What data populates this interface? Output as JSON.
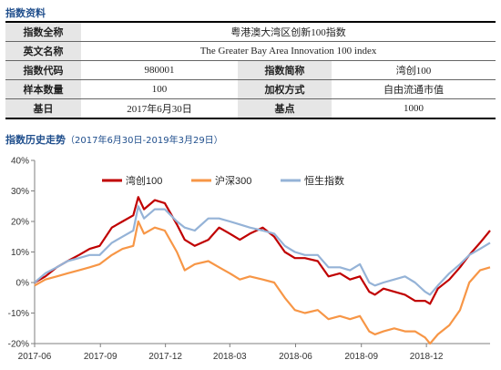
{
  "info_section": {
    "title": "指数资料"
  },
  "info_table": {
    "row1": {
      "label": "指数全称",
      "value": "粤港澳大湾区创新100指数"
    },
    "row2": {
      "label": "英文名称",
      "value": "The Greater Bay Area Innovation 100 index"
    },
    "row3": {
      "label_a": "指数代码",
      "value_a": "980001",
      "label_b": "指数简称",
      "value_b": "湾创100"
    },
    "row4": {
      "label_a": "样本数量",
      "value_a": "100",
      "label_b": "加权方式",
      "value_b": "自由流通市值"
    },
    "row5": {
      "label_a": "基日",
      "value_a": "2017年6月30日",
      "label_b": "基点",
      "value_b": "1000"
    }
  },
  "chart_section": {
    "title": "指数历史走势",
    "subtitle": "（2017年6月30日-2019年3月29日）"
  },
  "chart_data": {
    "type": "line",
    "x": [
      "2017-06-30",
      "2017-07-15",
      "2017-07-31",
      "2017-08-15",
      "2017-08-31",
      "2017-09-15",
      "2017-09-29",
      "2017-10-16",
      "2017-10-31",
      "2017-11-15",
      "2017-11-22",
      "2017-11-30",
      "2017-12-15",
      "2017-12-29",
      "2018-01-15",
      "2018-01-26",
      "2018-02-09",
      "2018-02-28",
      "2018-03-15",
      "2018-03-30",
      "2018-04-13",
      "2018-04-27",
      "2018-05-15",
      "2018-05-31",
      "2018-06-15",
      "2018-06-29",
      "2018-07-13",
      "2018-07-31",
      "2018-08-15",
      "2018-08-31",
      "2018-09-14",
      "2018-09-28",
      "2018-10-11",
      "2018-10-19",
      "2018-10-31",
      "2018-11-15",
      "2018-11-30",
      "2018-12-14",
      "2018-12-28",
      "2019-01-04",
      "2019-01-15",
      "2019-01-31",
      "2019-02-15",
      "2019-02-28",
      "2019-03-15",
      "2019-03-29"
    ],
    "series": [
      {
        "name": "湾创100",
        "color": "#c00000",
        "values": [
          0,
          2,
          5,
          7,
          9,
          11,
          12,
          18,
          20,
          22,
          28,
          24,
          27,
          26,
          19,
          14,
          12,
          14,
          18,
          16,
          14,
          16,
          18,
          15,
          10,
          8,
          8,
          7,
          2,
          3,
          1,
          2,
          -3,
          -4,
          -2,
          -3,
          -4,
          -6,
          -6,
          -7,
          -2,
          1,
          5,
          9,
          13,
          17
        ]
      },
      {
        "name": "沪深300",
        "color": "#f79646",
        "values": [
          -1,
          1,
          2,
          3,
          4,
          5,
          6,
          9,
          11,
          12,
          20,
          16,
          18,
          17,
          10,
          4,
          6,
          7,
          5,
          3,
          1,
          2,
          1,
          0,
          -5,
          -9,
          -10,
          -9,
          -12,
          -11,
          -12,
          -11,
          -16,
          -17,
          -16,
          -15,
          -16,
          -16,
          -18,
          -20,
          -17,
          -14,
          -9,
          0,
          4,
          5
        ]
      },
      {
        "name": "恒生指数",
        "color": "#95b3d7",
        "values": [
          0,
          3,
          5,
          7,
          8,
          9,
          9,
          13,
          15,
          17,
          25,
          21,
          24,
          24,
          20,
          18,
          17,
          21,
          21,
          20,
          19,
          18,
          17,
          16,
          12,
          10,
          9,
          9,
          5,
          5,
          4,
          6,
          0,
          -1,
          0,
          1,
          2,
          0,
          -3,
          -4,
          -1,
          3,
          6,
          9,
          11,
          13
        ]
      }
    ],
    "x_ticks": [
      "2017-06",
      "2017-09",
      "2017-12",
      "2018-03",
      "2018-06",
      "2018-09",
      "2018-12"
    ],
    "y_ticks": [
      "-20%",
      "-10%",
      "0%",
      "10%",
      "20%",
      "30%",
      "40%"
    ],
    "ylim": [
      -20,
      40
    ],
    "legend_position": "top-left",
    "grid": false
  }
}
